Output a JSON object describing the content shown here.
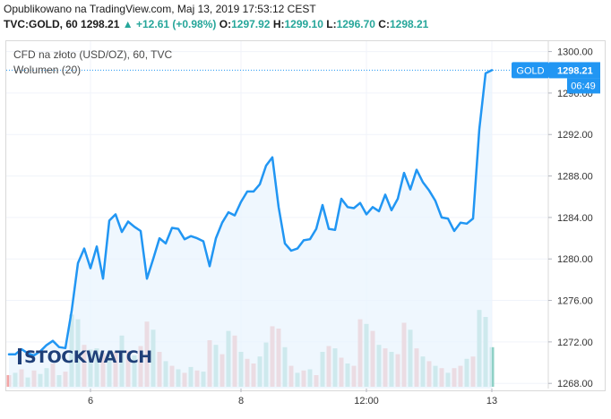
{
  "header": {
    "published": "Opublikowano na TradingView.com, Maj 13, 2019 17:53:12 CEST",
    "symbol": "TVC:GOLD, 60",
    "last": "1298.21",
    "change": "+12.61 (+0.98%)",
    "o_label": "O:",
    "o_value": "1297.92",
    "h_label": "H:",
    "h_value": "1299.10",
    "l_label": "L:",
    "l_value": "1296.70",
    "c_label": "C:",
    "c_value": "1298.21"
  },
  "legend": {
    "title": "CFD na złoto (USD/OZ), 60, TVC",
    "volume": "Wolumen (20)"
  },
  "logo_text": "STOCKWATCH",
  "colors": {
    "line": "#2196f3",
    "area": "#e8f3fd",
    "vol_up": "#8fd1c6",
    "vol_down": "#f2a5a5",
    "price_tag": "#2196f3",
    "green": "#26a69a"
  },
  "chart_data": {
    "type": "line",
    "price_tag": {
      "label": "GOLD",
      "value": "1298.21",
      "countdown": "06:49"
    },
    "y_ticks": [
      "1300.00",
      "1296.00",
      "1292.00",
      "1288.00",
      "1284.00",
      "1280.00",
      "1276.00",
      "1272.00",
      "1268.00"
    ],
    "ylim": [
      1267.5,
      1301.0
    ],
    "x_ticks": [
      {
        "label": "6",
        "i": 13
      },
      {
        "label": "8",
        "i": 37
      },
      {
        "label": "12:00",
        "i": 57
      },
      {
        "label": "13",
        "i": 77
      }
    ],
    "price": [
      1270.8,
      1270.8,
      1271.3,
      1270.9,
      1270.7,
      1271.1,
      1271.7,
      1272.1,
      1271.5,
      1271.4,
      1275.0,
      1279.6,
      1281.0,
      1279.1,
      1281.2,
      1278.1,
      1283.7,
      1284.3,
      1282.6,
      1283.6,
      1283.1,
      1282.7,
      1278.1,
      1280.0,
      1282.0,
      1281.5,
      1283.0,
      1282.9,
      1281.9,
      1282.2,
      1282.0,
      1281.7,
      1279.3,
      1282.0,
      1283.5,
      1284.5,
      1284.2,
      1285.5,
      1286.5,
      1286.5,
      1287.2,
      1289.0,
      1289.8,
      1285.0,
      1281.5,
      1280.8,
      1281.0,
      1281.8,
      1281.9,
      1282.9,
      1285.2,
      1282.9,
      1282.8,
      1285.8,
      1285.0,
      1284.9,
      1285.4,
      1284.3,
      1285.0,
      1284.6,
      1286.2,
      1284.7,
      1285.8,
      1288.3,
      1286.7,
      1288.6,
      1287.4,
      1286.6,
      1285.6,
      1284.0,
      1283.9,
      1282.7,
      1283.5,
      1283.4,
      1283.9,
      1292.5,
      1297.9,
      1298.2
    ],
    "volume": [
      0.1,
      0.12,
      0.15,
      0.08,
      0.14,
      0.11,
      0.16,
      0.2,
      0.1,
      0.13,
      0.62,
      0.58,
      0.36,
      0.32,
      0.33,
      0.29,
      0.26,
      0.3,
      0.44,
      0.31,
      0.27,
      0.35,
      0.56,
      0.49,
      0.3,
      0.22,
      0.18,
      0.15,
      0.12,
      0.17,
      0.14,
      0.13,
      0.4,
      0.36,
      0.28,
      0.48,
      0.44,
      0.3,
      0.24,
      0.2,
      0.26,
      0.38,
      0.52,
      0.5,
      0.34,
      0.18,
      0.12,
      0.14,
      0.15,
      0.1,
      0.3,
      0.35,
      0.33,
      0.25,
      0.2,
      0.18,
      0.58,
      0.54,
      0.48,
      0.36,
      0.33,
      0.3,
      0.28,
      0.55,
      0.49,
      0.33,
      0.26,
      0.22,
      0.18,
      0.16,
      0.12,
      0.16,
      0.18,
      0.24,
      0.26,
      0.66,
      0.6,
      0.34
    ],
    "volume_up": [
      false,
      true,
      false,
      true,
      false,
      true,
      true,
      false,
      true,
      false,
      true,
      true,
      false,
      true,
      true,
      false,
      true,
      false,
      true,
      false,
      true,
      false,
      false,
      true,
      false,
      true,
      false,
      true,
      false,
      true,
      false,
      true,
      false,
      true,
      false,
      true,
      false,
      true,
      false,
      false,
      true,
      true,
      false,
      false,
      true,
      false,
      true,
      false,
      true,
      false,
      true,
      false,
      true,
      false,
      true,
      false,
      false,
      true,
      false,
      true,
      false,
      true,
      false,
      false,
      true,
      false,
      true,
      false,
      true,
      false,
      true,
      false,
      false,
      true,
      false,
      true,
      true,
      true
    ]
  }
}
